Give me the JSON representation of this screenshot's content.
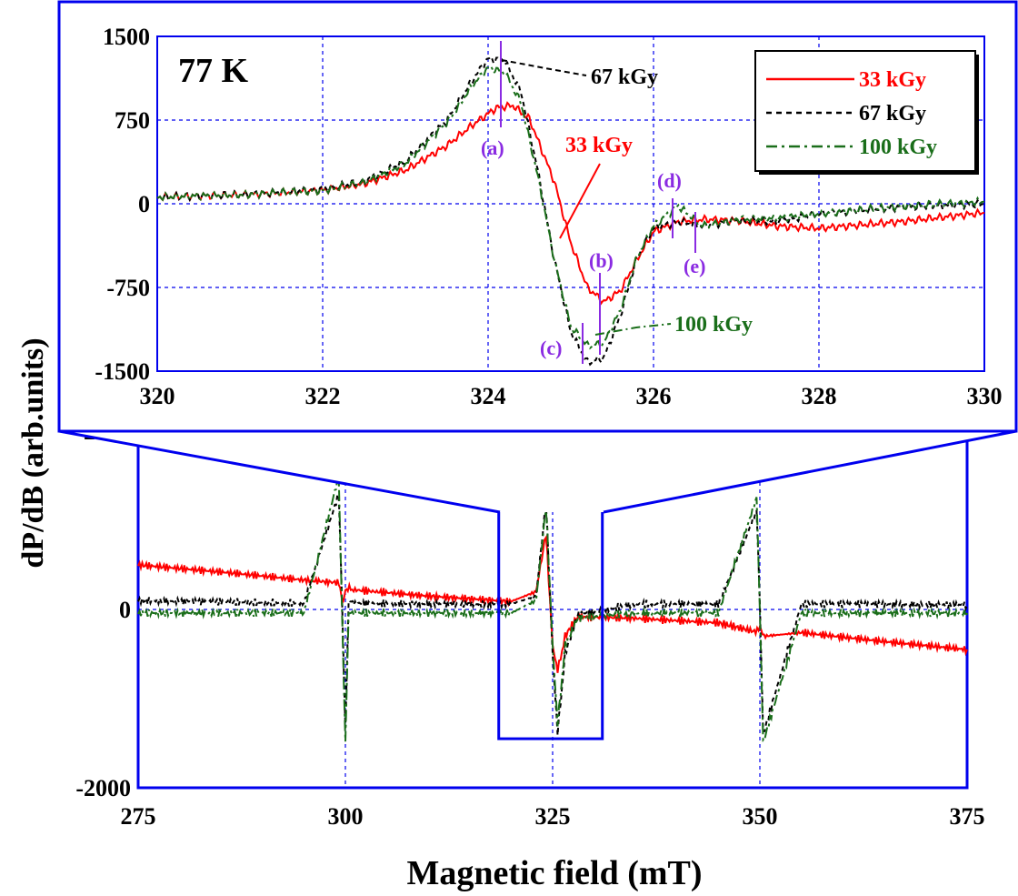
{
  "figure": {
    "ylabel": "dP/dB (arb.units)",
    "xlabel": "Magnetic field (mT)"
  },
  "chart_data": [
    {
      "id": "inset",
      "type": "line",
      "title": "77 K",
      "xlim": [
        320,
        330
      ],
      "ylim": [
        -1500,
        1500
      ],
      "x_ticks": [
        "320",
        "322",
        "324",
        "326",
        "328",
        "330"
      ],
      "y_ticks": [
        "1500",
        "750",
        "0",
        "-750",
        "-1500"
      ],
      "grid": true,
      "legend_position": "top-right",
      "legend": [
        {
          "label": "33 kGy",
          "color": "#ff0000",
          "dash": "solid"
        },
        {
          "label": "67 kGy",
          "color": "#000000",
          "dash": "dotted"
        },
        {
          "label": "100 kGy",
          "color": "#1a6e1a",
          "dash": "dash-dot"
        }
      ],
      "annotations": {
        "a": "(a)",
        "b": "(b)",
        "c": "(c)",
        "d": "(d)",
        "e": "(e)",
        "label_33": "33 kGy",
        "label_67": "67 kGy",
        "label_100": "100 kGy"
      },
      "series": [
        {
          "name": "33 kGy",
          "color": "#ff0000",
          "x": [
            320,
            321,
            322,
            322.5,
            323,
            323.5,
            323.8,
            324.1,
            324.3,
            324.5,
            324.8,
            325.0,
            325.2,
            325.4,
            325.6,
            325.8,
            326.0,
            326.3,
            326.6,
            327.0,
            327.5,
            328,
            329,
            330
          ],
          "y": [
            60,
            80,
            120,
            180,
            300,
            520,
            700,
            860,
            880,
            760,
            200,
            -350,
            -750,
            -880,
            -780,
            -500,
            -250,
            -160,
            -140,
            -150,
            -200,
            -220,
            -160,
            -80
          ]
        },
        {
          "name": "67 kGy",
          "color": "#000000",
          "x": [
            320,
            321,
            322,
            322.5,
            323,
            323.5,
            323.8,
            324.0,
            324.2,
            324.4,
            324.6,
            324.8,
            325.0,
            325.2,
            325.4,
            325.6,
            325.8,
            326.0,
            326.3,
            326.6,
            327.0,
            327.5,
            328,
            329,
            330
          ],
          "y": [
            60,
            80,
            130,
            200,
            380,
            750,
            1100,
            1300,
            1280,
            1000,
            300,
            -500,
            -1150,
            -1420,
            -1380,
            -1000,
            -480,
            -220,
            -160,
            -200,
            -150,
            -160,
            -90,
            -30,
            0
          ]
        },
        {
          "name": "100 kGy",
          "color": "#1a6e1a",
          "x": [
            320,
            321,
            322,
            322.5,
            323,
            323.5,
            323.8,
            324.0,
            324.2,
            324.4,
            324.6,
            324.8,
            325.0,
            325.2,
            325.4,
            325.6,
            325.8,
            326.0,
            326.3,
            326.6,
            327.0,
            327.5,
            328,
            329,
            330
          ],
          "y": [
            60,
            80,
            120,
            190,
            360,
            720,
            1050,
            1220,
            1180,
            900,
            250,
            -500,
            -1100,
            -1270,
            -1250,
            -950,
            -480,
            -200,
            -20,
            -200,
            -140,
            -130,
            -90,
            -20,
            20
          ]
        }
      ]
    },
    {
      "id": "main",
      "type": "line",
      "xlim": [
        275,
        375
      ],
      "ylim": [
        -2000,
        2000
      ],
      "x_ticks": [
        "275",
        "300",
        "325",
        "350",
        "375"
      ],
      "y_ticks": [
        "2000",
        "0",
        "-2000"
      ],
      "grid": true,
      "zoom_box": {
        "x": [
          318.5,
          331
        ],
        "y": [
          -1450,
          1350
        ]
      },
      "series": [
        {
          "name": "33 kGy",
          "color": "#ff0000",
          "x": [
            275,
            285,
            295,
            299.2,
            299.7,
            300.0,
            300.3,
            301,
            310,
            320,
            323,
            324.2,
            325.0,
            325.6,
            326.5,
            328,
            335,
            345,
            349.5,
            350.0,
            350.5,
            355,
            365,
            375
          ],
          "y": [
            500,
            420,
            330,
            300,
            80,
            200,
            240,
            220,
            150,
            90,
            200,
            850,
            -400,
            -700,
            -300,
            -80,
            -100,
            -150,
            -250,
            -200,
            -300,
            -260,
            -360,
            -450
          ]
        },
        {
          "name": "67 kGy",
          "color": "#000000",
          "x": [
            275,
            285,
            295,
            299.2,
            299.6,
            300.0,
            300.4,
            301,
            310,
            320,
            323,
            324.2,
            325.0,
            325.6,
            326.5,
            328,
            335,
            345,
            349.6,
            350.0,
            350.4,
            355,
            365,
            375
          ],
          "y": [
            100,
            85,
            70,
            1300,
            100,
            -1350,
            100,
            70,
            60,
            60,
            150,
            1200,
            -500,
            -1400,
            -500,
            -60,
            60,
            60,
            1100,
            60,
            -1400,
            60,
            60,
            50
          ]
        },
        {
          "name": "100 kGy",
          "color": "#1a6e1a",
          "x": [
            275,
            285,
            295,
            299.2,
            299.6,
            300.0,
            300.4,
            301,
            310,
            320,
            323,
            324.2,
            325.0,
            325.6,
            326.5,
            328,
            335,
            345,
            349.6,
            350.0,
            350.4,
            355,
            365,
            375
          ],
          "y": [
            -40,
            -40,
            -40,
            1500,
            -40,
            -1500,
            -40,
            -40,
            -40,
            -40,
            100,
            1150,
            -400,
            -1300,
            -400,
            -100,
            -40,
            -40,
            1250,
            -40,
            -1500,
            -40,
            -40,
            -40
          ]
        }
      ]
    }
  ]
}
